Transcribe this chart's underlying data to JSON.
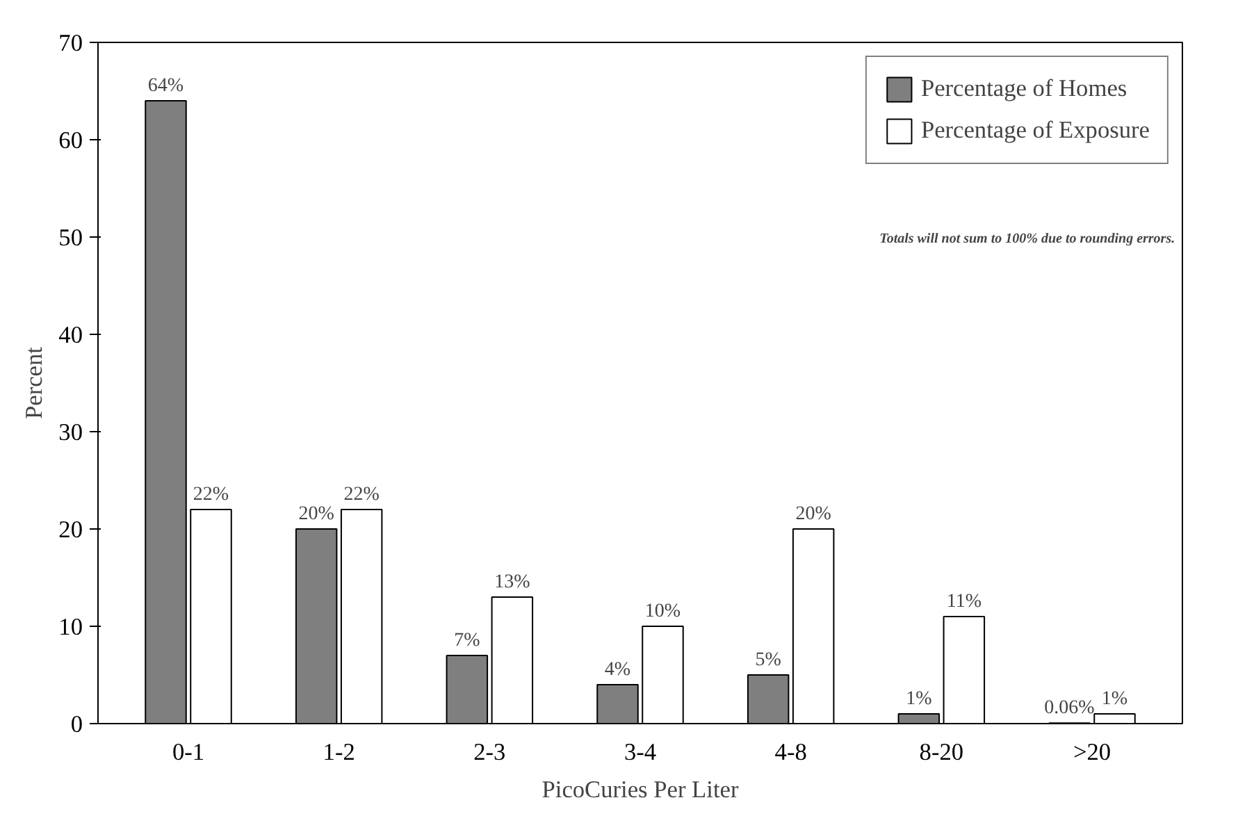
{
  "chart_data": {
    "type": "bar",
    "xlabel": "PicoCuries Per Liter",
    "ylabel": "Percent",
    "categories": [
      "0-1",
      "1-2",
      "2-3",
      "3-4",
      "4-8",
      "8-20",
      ">20"
    ],
    "series": [
      {
        "name": "Percentage of Homes",
        "color": "#7f7f7f",
        "values": [
          64,
          20,
          7,
          4,
          5,
          1,
          0.06
        ],
        "value_labels": [
          "64%",
          "20%",
          "7%",
          "4%",
          "5%",
          "1%",
          "0.06%"
        ]
      },
      {
        "name": "Percentage of Exposure",
        "color": "#ffffff",
        "values": [
          22,
          22,
          13,
          10,
          20,
          11,
          1
        ],
        "value_labels": [
          "22%",
          "22%",
          "13%",
          "10%",
          "20%",
          "11%",
          "1%"
        ]
      }
    ],
    "ylim": [
      0,
      70
    ],
    "yticks": [
      0,
      10,
      20,
      30,
      40,
      50,
      60,
      70
    ],
    "grid": false,
    "legend": "top right",
    "annotations": [
      "Totals will not sum to 100% due to rounding errors."
    ]
  }
}
